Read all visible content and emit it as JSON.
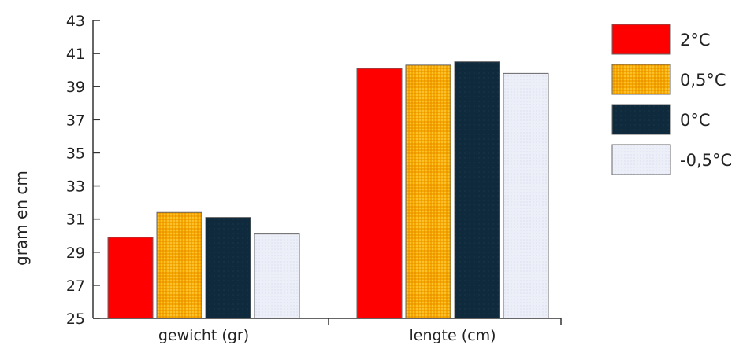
{
  "chart_data": {
    "type": "bar",
    "title": "",
    "xlabel": "",
    "ylabel": "gram en cm",
    "ylim": [
      25,
      43
    ],
    "yticks": [
      25,
      27,
      29,
      31,
      33,
      35,
      37,
      39,
      41,
      43
    ],
    "grid": false,
    "legend_position": "right",
    "categories": [
      "gewicht (gr)",
      "lengte (cm)"
    ],
    "series": [
      {
        "name": "2°C",
        "color": "#ff0000",
        "values": [
          29.9,
          40.1
        ]
      },
      {
        "name": "0,5°C",
        "color": "#f5a800",
        "values": [
          31.4,
          40.3
        ]
      },
      {
        "name": "0°C",
        "color": "#0e2a3c",
        "values": [
          31.1,
          40.5
        ]
      },
      {
        "name": "-0,5°C",
        "color": "#e8e9f6",
        "values": [
          30.1,
          39.8
        ]
      }
    ]
  }
}
